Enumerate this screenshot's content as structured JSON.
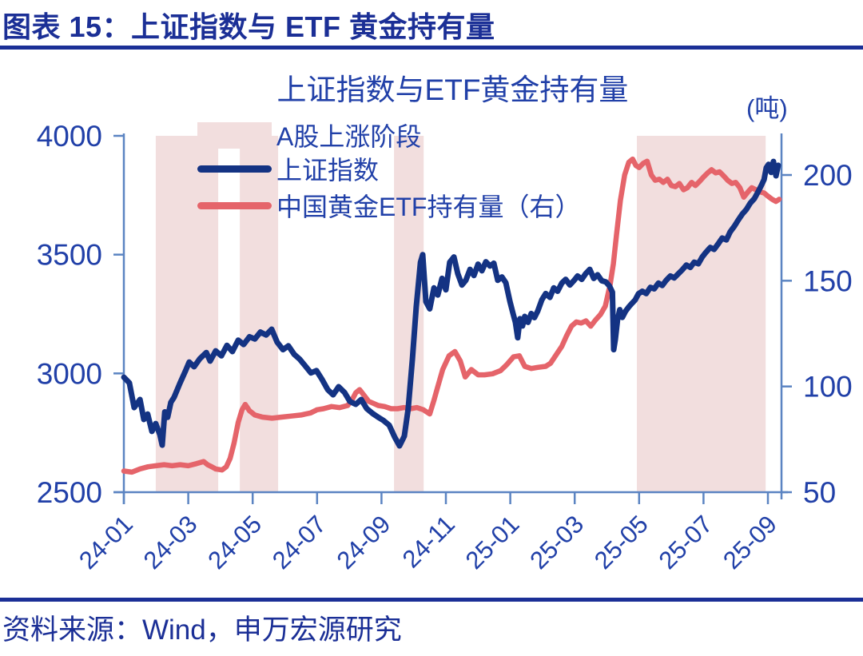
{
  "page": {
    "caption": "图表 15：上证指数与 ETF 黄金持有量",
    "source": "资料来源：Wind，申万宏源研究"
  },
  "colors": {
    "navy": "#1B2F96",
    "label_blue": "#2140A8",
    "line_blue": "#143383",
    "line_red": "#E5646A",
    "band_pink": "#F2DEDE",
    "axis_blue": "#5B84C2"
  },
  "legend": {
    "items": [
      {
        "label": "A股上涨阶段",
        "marker": "pink-band-swatch"
      },
      {
        "label": "上证指数",
        "marker": "blue-line"
      },
      {
        "label": "中国黄金ETF持有量（右）",
        "marker": "red-line"
      }
    ]
  },
  "chart_data": {
    "type": "line",
    "title": "上证指数与ETF黄金持有量",
    "right_axis_unit": "(吨)",
    "x_axis": {
      "tick_labels": [
        "24-01",
        "24-03",
        "24-05",
        "24-07",
        "24-09",
        "24-11",
        "25-01",
        "25-03",
        "25-05",
        "25-07",
        "25-09"
      ],
      "months_domain": [
        0,
        20.4
      ],
      "note_month_zero": "2024-01"
    },
    "left_axis": {
      "series": "上证指数",
      "ticks": [
        2500,
        3000,
        3500,
        4000
      ],
      "range": [
        2500,
        4000
      ]
    },
    "right_axis": {
      "series": "中国黄金ETF持有量",
      "unit": "吨",
      "ticks": [
        50,
        100,
        150,
        200
      ],
      "range": [
        50,
        218
      ]
    },
    "shaded_regions": {
      "label": "A股上涨阶段",
      "month_ranges": [
        [
          0.99,
          2.93
        ],
        [
          3.6,
          4.79
        ],
        [
          8.39,
          9.31
        ],
        [
          15.93,
          19.93
        ]
      ]
    },
    "series": [
      {
        "name": "中国黄金ETF持有量（右）",
        "axis": "right",
        "color": "#E5646A",
        "points": [
          [
            0,
            60
          ],
          [
            0.25,
            59.5
          ],
          [
            0.5,
            61
          ],
          [
            0.75,
            62
          ],
          [
            1,
            62.5
          ],
          [
            1.25,
            63
          ],
          [
            1.5,
            62.5
          ],
          [
            1.75,
            63
          ],
          [
            2,
            62.5
          ],
          [
            2.25,
            63.5
          ],
          [
            2.48,
            64.5
          ],
          [
            2.6,
            63
          ],
          [
            2.73,
            62
          ],
          [
            2.85,
            61
          ],
          [
            3.05,
            60.5
          ],
          [
            3.18,
            62
          ],
          [
            3.3,
            66
          ],
          [
            3.42,
            73
          ],
          [
            3.55,
            83
          ],
          [
            3.67,
            89
          ],
          [
            3.77,
            91.5
          ],
          [
            3.9,
            88.5
          ],
          [
            4.07,
            86.5
          ],
          [
            4.3,
            85.5
          ],
          [
            4.6,
            85
          ],
          [
            4.9,
            85.5
          ],
          [
            5.2,
            86
          ],
          [
            5.5,
            86.5
          ],
          [
            5.8,
            87.5
          ],
          [
            6,
            89
          ],
          [
            6.2,
            89.5
          ],
          [
            6.45,
            90.5
          ],
          [
            6.7,
            90
          ],
          [
            6.95,
            91
          ],
          [
            7.1,
            94
          ],
          [
            7.2,
            97
          ],
          [
            7.32,
            98.5
          ],
          [
            7.45,
            96
          ],
          [
            7.6,
            93
          ],
          [
            7.75,
            92
          ],
          [
            7.9,
            91
          ],
          [
            8.1,
            90.5
          ],
          [
            8.3,
            89.5
          ],
          [
            8.5,
            89.5
          ],
          [
            8.7,
            90
          ],
          [
            8.9,
            89.5
          ],
          [
            9.1,
            90
          ],
          [
            9.3,
            89
          ],
          [
            9.5,
            87
          ],
          [
            9.62,
            93
          ],
          [
            9.75,
            100
          ],
          [
            9.9,
            108
          ],
          [
            10.1,
            114.5
          ],
          [
            10.28,
            116.5
          ],
          [
            10.45,
            112
          ],
          [
            10.6,
            104.5
          ],
          [
            10.79,
            108
          ],
          [
            11,
            105.5
          ],
          [
            11.2,
            105.5
          ],
          [
            11.45,
            106
          ],
          [
            11.7,
            107.5
          ],
          [
            11.9,
            110.5
          ],
          [
            12.1,
            114
          ],
          [
            12.28,
            114.5
          ],
          [
            12.45,
            109.5
          ],
          [
            12.65,
            108.5
          ],
          [
            12.85,
            109
          ],
          [
            13.1,
            109.5
          ],
          [
            13.25,
            111
          ],
          [
            13.45,
            115.5
          ],
          [
            13.6,
            119
          ],
          [
            13.75,
            124
          ],
          [
            13.9,
            128.5
          ],
          [
            14.05,
            130.5
          ],
          [
            14.2,
            130
          ],
          [
            14.35,
            131
          ],
          [
            14.5,
            128.5
          ],
          [
            14.65,
            131.5
          ],
          [
            14.8,
            134
          ],
          [
            14.95,
            138
          ],
          [
            15.1,
            148
          ],
          [
            15.2,
            158
          ],
          [
            15.3,
            172
          ],
          [
            15.42,
            188
          ],
          [
            15.55,
            200
          ],
          [
            15.68,
            206
          ],
          [
            15.8,
            207.5
          ],
          [
            15.9,
            204.5
          ],
          [
            16,
            203.5
          ],
          [
            16.13,
            205.5
          ],
          [
            16.25,
            206.5
          ],
          [
            16.38,
            200
          ],
          [
            16.5,
            197.5
          ],
          [
            16.63,
            198
          ],
          [
            16.75,
            196.5
          ],
          [
            16.88,
            198
          ],
          [
            17,
            195
          ],
          [
            17.13,
            194.5
          ],
          [
            17.25,
            196
          ],
          [
            17.38,
            193
          ],
          [
            17.5,
            194
          ],
          [
            17.63,
            196.5
          ],
          [
            17.75,
            195
          ],
          [
            17.88,
            197
          ],
          [
            18,
            199
          ],
          [
            18.13,
            201
          ],
          [
            18.25,
            202.5
          ],
          [
            18.38,
            201
          ],
          [
            18.5,
            201.5
          ],
          [
            18.63,
            199.5
          ],
          [
            18.75,
            197.5
          ],
          [
            18.88,
            196
          ],
          [
            19,
            196.5
          ],
          [
            19.13,
            194
          ],
          [
            19.25,
            189.5
          ],
          [
            19.38,
            192
          ],
          [
            19.5,
            194
          ],
          [
            19.63,
            193
          ],
          [
            19.75,
            192
          ],
          [
            19.88,
            191.5
          ],
          [
            20,
            190
          ],
          [
            20.13,
            188.5
          ],
          [
            20.25,
            187.5
          ],
          [
            20.35,
            188.5
          ]
        ]
      },
      {
        "name": "上证指数",
        "axis": "left",
        "color": "#143383",
        "points": [
          [
            0,
            2984
          ],
          [
            0.17,
            2960
          ],
          [
            0.32,
            2856
          ],
          [
            0.5,
            2890
          ],
          [
            0.62,
            2806
          ],
          [
            0.74,
            2829
          ],
          [
            0.87,
            2756
          ],
          [
            0.99,
            2789
          ],
          [
            1.12,
            2742
          ],
          [
            1.19,
            2698
          ],
          [
            1.27,
            2838
          ],
          [
            1.36,
            2815
          ],
          [
            1.46,
            2878
          ],
          [
            1.56,
            2900
          ],
          [
            1.74,
            2958
          ],
          [
            1.91,
            3010
          ],
          [
            2.03,
            3048
          ],
          [
            2.18,
            3028
          ],
          [
            2.36,
            3062
          ],
          [
            2.56,
            3088
          ],
          [
            2.68,
            3052
          ],
          [
            2.85,
            3095
          ],
          [
            3.03,
            3074
          ],
          [
            3.2,
            3118
          ],
          [
            3.37,
            3092
          ],
          [
            3.55,
            3140
          ],
          [
            3.72,
            3122
          ],
          [
            3.9,
            3154
          ],
          [
            4.07,
            3145
          ],
          [
            4.24,
            3174
          ],
          [
            4.42,
            3162
          ],
          [
            4.59,
            3186
          ],
          [
            4.76,
            3132
          ],
          [
            4.94,
            3100
          ],
          [
            5.11,
            3116
          ],
          [
            5.29,
            3080
          ],
          [
            5.46,
            3060
          ],
          [
            5.63,
            3032
          ],
          [
            5.81,
            3002
          ],
          [
            5.98,
            3012
          ],
          [
            6.15,
            2976
          ],
          [
            6.33,
            2932
          ],
          [
            6.5,
            2910
          ],
          [
            6.67,
            2944
          ],
          [
            6.85,
            2920
          ],
          [
            7.02,
            2882
          ],
          [
            7.2,
            2870
          ],
          [
            7.37,
            2890
          ],
          [
            7.54,
            2852
          ],
          [
            7.72,
            2832
          ],
          [
            7.89,
            2816
          ],
          [
            8.06,
            2802
          ],
          [
            8.24,
            2782
          ],
          [
            8.41,
            2732
          ],
          [
            8.56,
            2695
          ],
          [
            8.71,
            2736
          ],
          [
            8.83,
            2850
          ],
          [
            8.96,
            3060
          ],
          [
            9.08,
            3280
          ],
          [
            9.21,
            3468
          ],
          [
            9.28,
            3500
          ],
          [
            9.38,
            3302
          ],
          [
            9.5,
            3272
          ],
          [
            9.63,
            3360
          ],
          [
            9.75,
            3330
          ],
          [
            9.88,
            3400
          ],
          [
            10,
            3352
          ],
          [
            10.12,
            3468
          ],
          [
            10.25,
            3490
          ],
          [
            10.37,
            3420
          ],
          [
            10.5,
            3372
          ],
          [
            10.62,
            3392
          ],
          [
            10.75,
            3438
          ],
          [
            10.87,
            3412
          ],
          [
            11,
            3460
          ],
          [
            11.12,
            3432
          ],
          [
            11.24,
            3470
          ],
          [
            11.37,
            3452
          ],
          [
            11.49,
            3464
          ],
          [
            11.61,
            3392
          ],
          [
            11.74,
            3406
          ],
          [
            11.86,
            3382
          ],
          [
            11.99,
            3302
          ],
          [
            12.08,
            3255
          ],
          [
            12.16,
            3215
          ],
          [
            12.23,
            3150
          ],
          [
            12.3,
            3230
          ],
          [
            12.38,
            3200
          ],
          [
            12.45,
            3240
          ],
          [
            12.55,
            3215
          ],
          [
            12.65,
            3252
          ],
          [
            12.75,
            3235
          ],
          [
            12.85,
            3262
          ],
          [
            12.98,
            3310
          ],
          [
            13.1,
            3336
          ],
          [
            13.23,
            3320
          ],
          [
            13.35,
            3360
          ],
          [
            13.47,
            3346
          ],
          [
            13.6,
            3380
          ],
          [
            13.72,
            3396
          ],
          [
            13.85,
            3372
          ],
          [
            13.97,
            3390
          ],
          [
            14.09,
            3410
          ],
          [
            14.22,
            3396
          ],
          [
            14.34,
            3420
          ],
          [
            14.47,
            3438
          ],
          [
            14.59,
            3400
          ],
          [
            14.71,
            3415
          ],
          [
            14.84,
            3390
          ],
          [
            14.97,
            3385
          ],
          [
            15.08,
            3368
          ],
          [
            15.17,
            3342
          ],
          [
            15.21,
            3100
          ],
          [
            15.26,
            3142
          ],
          [
            15.33,
            3225
          ],
          [
            15.4,
            3268
          ],
          [
            15.48,
            3236
          ],
          [
            15.58,
            3262
          ],
          [
            15.68,
            3280
          ],
          [
            15.78,
            3295
          ],
          [
            15.88,
            3310
          ],
          [
            15.98,
            3335
          ],
          [
            16.1,
            3346
          ],
          [
            16.22,
            3336
          ],
          [
            16.35,
            3362
          ],
          [
            16.47,
            3356
          ],
          [
            16.6,
            3380
          ],
          [
            16.72,
            3370
          ],
          [
            16.84,
            3392
          ],
          [
            16.97,
            3410
          ],
          [
            17.09,
            3402
          ],
          [
            17.22,
            3420
          ],
          [
            17.34,
            3436
          ],
          [
            17.47,
            3456
          ],
          [
            17.59,
            3446
          ],
          [
            17.71,
            3468
          ],
          [
            17.84,
            3462
          ],
          [
            17.96,
            3490
          ],
          [
            18.09,
            3512
          ],
          [
            18.21,
            3530
          ],
          [
            18.33,
            3522
          ],
          [
            18.46,
            3546
          ],
          [
            18.58,
            3570
          ],
          [
            18.71,
            3562
          ],
          [
            18.83,
            3596
          ],
          [
            18.96,
            3620
          ],
          [
            19.08,
            3646
          ],
          [
            19.2,
            3670
          ],
          [
            19.33,
            3690
          ],
          [
            19.45,
            3716
          ],
          [
            19.58,
            3736
          ],
          [
            19.7,
            3766
          ],
          [
            19.8,
            3792
          ],
          [
            19.88,
            3816
          ],
          [
            19.95,
            3866
          ],
          [
            20.02,
            3880
          ],
          [
            20.1,
            3846
          ],
          [
            20.17,
            3892
          ],
          [
            20.25,
            3832
          ],
          [
            20.32,
            3876
          ]
        ]
      }
    ]
  }
}
